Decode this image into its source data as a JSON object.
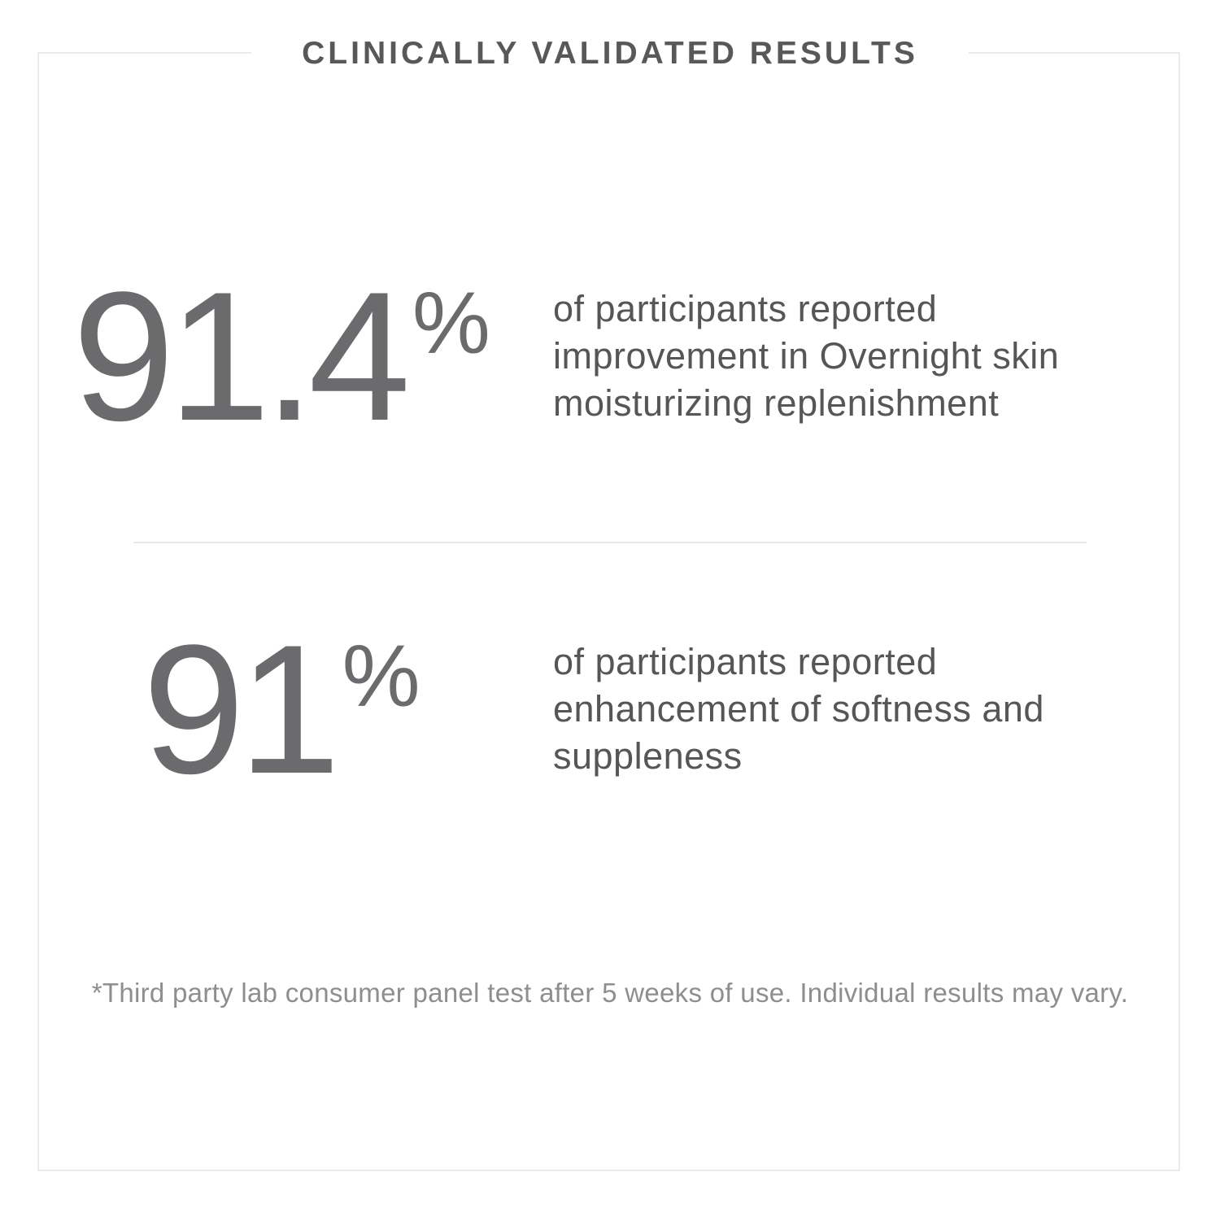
{
  "panel": {
    "title": "CLINICALLY VALIDATED RESULTS",
    "footnote": "*Third party lab consumer panel test after 5 weeks of use. Individual results may vary."
  },
  "stats": [
    {
      "value": "91.4",
      "unit": "%",
      "description_lines": [
        "of participants reported",
        "improvement in Overnight skin",
        "moisturizing replenishment"
      ]
    },
    {
      "value": "91",
      "unit": "%",
      "description_lines": [
        "of participants reported",
        "enhancement of softness and",
        "suppleness"
      ]
    }
  ],
  "colors": {
    "background": "#ffffff",
    "border_gray": "#ebebec",
    "title_gray": "#58585b",
    "stat_number_gray": "#6b6b6e",
    "body_text_gray": "#565659",
    "footnote_gray": "#8e8e91",
    "divider_gray": "#e8e8e9"
  }
}
